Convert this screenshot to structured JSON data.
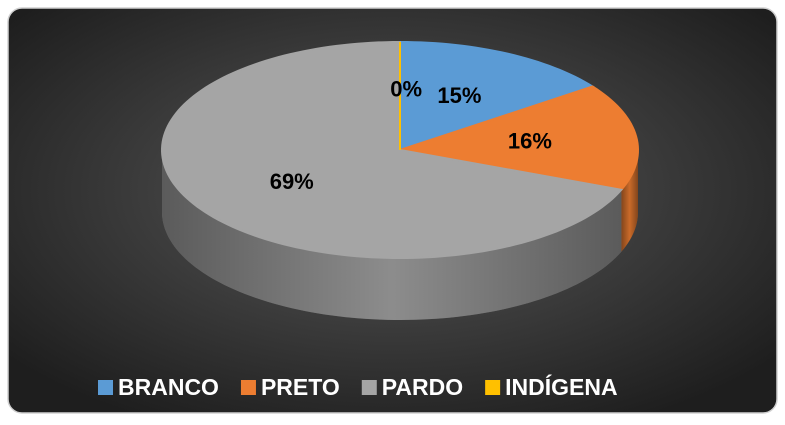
{
  "chart_data": {
    "type": "pie",
    "categories": [
      "BRANCO",
      "PRETO",
      "PARDO",
      "INDÍGENA"
    ],
    "values": [
      15,
      16,
      69,
      0
    ],
    "value_labels": [
      "15%",
      "16%",
      "69%",
      "0%"
    ],
    "colors": [
      "#5b9bd5",
      "#ed7d31",
      "#a5a5a5",
      "#ffc000"
    ],
    "legend": "bottom"
  }
}
